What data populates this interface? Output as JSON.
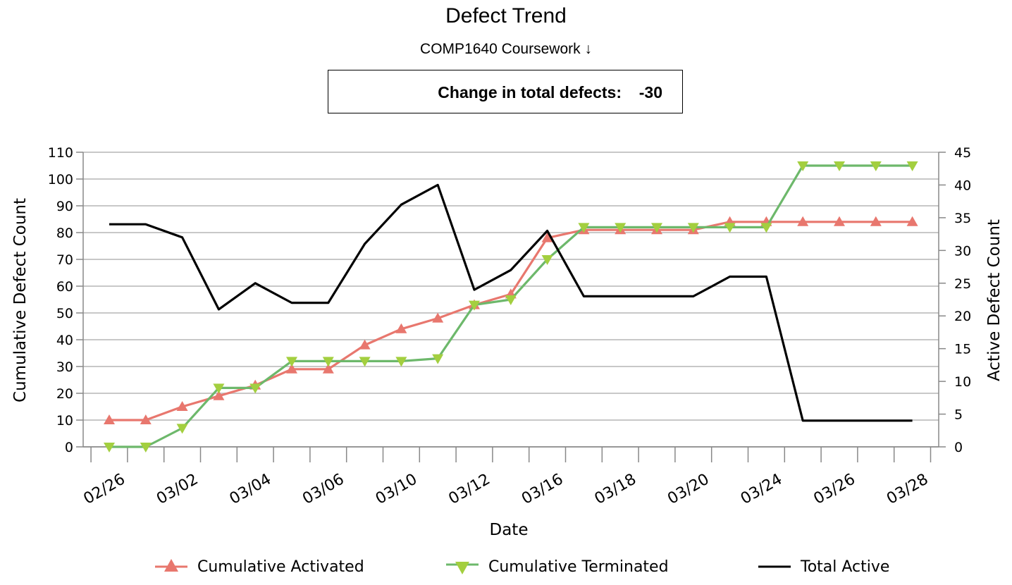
{
  "chart_data": {
    "type": "line",
    "title": "Defect Trend",
    "subtitle": "COMP1640 Coursework ↓",
    "summary": {
      "label": "Change in total defects:",
      "value": "-30"
    },
    "xlabel": "Date",
    "ylabel_left": "Cumulative Defect Count",
    "ylabel_right": "Active Defect Count",
    "ylim_left": [
      0,
      110
    ],
    "ylim_right": [
      0,
      45
    ],
    "yticks_left": [
      0,
      10,
      20,
      30,
      40,
      50,
      60,
      70,
      80,
      90,
      100,
      110
    ],
    "yticks_right": [
      0,
      5,
      10,
      15,
      20,
      25,
      30,
      35,
      40,
      45
    ],
    "grid": true,
    "legend_position": "bottom",
    "x_tick_labels": [
      "02/26",
      "03/02",
      "03/04",
      "03/06",
      "03/10",
      "03/12",
      "03/16",
      "03/18",
      "03/20",
      "03/24",
      "03/26",
      "03/28"
    ],
    "point_count": 23,
    "series": [
      {
        "name": "Cumulative Activated",
        "axis": "left",
        "color": "#e8776e",
        "marker": "triangle-up",
        "values": [
          10,
          10,
          15,
          19,
          23,
          29,
          29,
          38,
          44,
          48,
          53,
          57,
          78,
          81,
          81,
          81,
          81,
          84,
          84,
          84,
          84,
          84,
          84
        ]
      },
      {
        "name": "Cumulative Terminated",
        "axis": "left",
        "color": "#6db86b",
        "marker": "triangle-down",
        "values": [
          0,
          0,
          7,
          22,
          22,
          32,
          32,
          32,
          32,
          33,
          53,
          55,
          70,
          82,
          82,
          82,
          82,
          82,
          82,
          105,
          105,
          105,
          105
        ]
      },
      {
        "name": "Total Active",
        "axis": "right",
        "color": "#000000",
        "marker": "none",
        "values": [
          34,
          34,
          32,
          21,
          25,
          22,
          22,
          31,
          37,
          40,
          24,
          27,
          33,
          23,
          23,
          23,
          23,
          26,
          26,
          4,
          4,
          4,
          4
        ]
      }
    ]
  }
}
